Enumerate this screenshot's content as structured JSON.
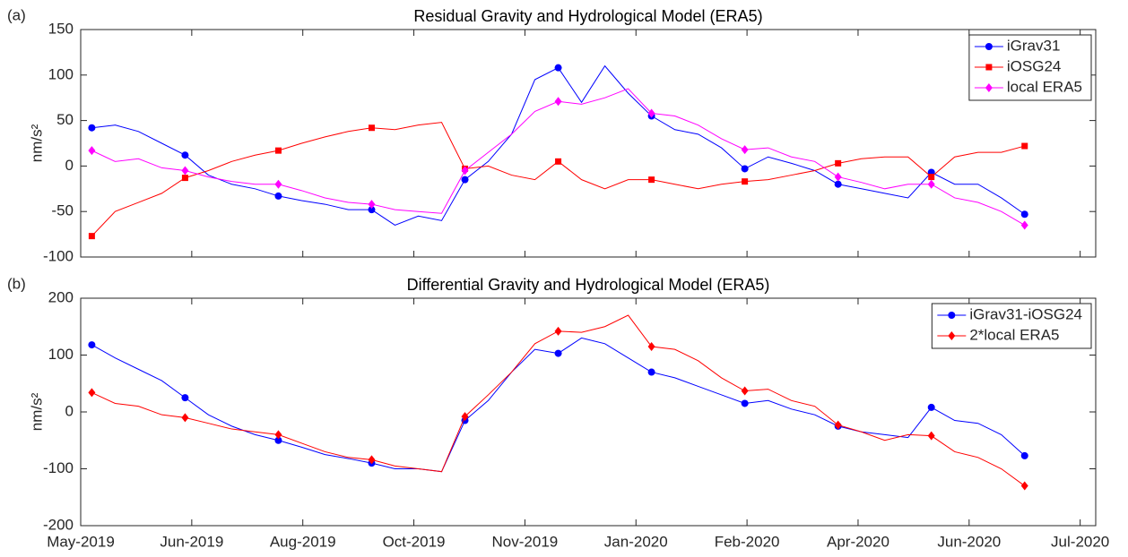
{
  "chart_data": [
    {
      "type": "line",
      "panel_label": "(a)",
      "title": "Residual Gravity and Hydrological Model (ERA5)",
      "ylabel": "nm/s²",
      "x": [
        0.1,
        0.31,
        0.52,
        0.73,
        0.94,
        1.15,
        1.36,
        1.57,
        1.78,
        1.99,
        2.2,
        2.41,
        2.62,
        2.83,
        3.04,
        3.25,
        3.46,
        3.67,
        3.88,
        4.09,
        4.3,
        4.51,
        4.72,
        4.93,
        5.14,
        5.35,
        5.56,
        5.77,
        5.98,
        6.19,
        6.4,
        6.61,
        6.82,
        7.03,
        7.24,
        7.45,
        7.66,
        7.87,
        8.08,
        8.29,
        8.5
      ],
      "xlim": [
        0,
        9.14
      ],
      "xticks": [
        0,
        1,
        2,
        3,
        4,
        5,
        6,
        7,
        8,
        9
      ],
      "show_xtick_labels": false,
      "ylim": [
        -100,
        150
      ],
      "yticks": [
        -100,
        -50,
        0,
        50,
        100,
        150
      ],
      "legend": "northeast",
      "markevery": 4,
      "series": [
        {
          "name": "iGrav31",
          "color": "#0000ff",
          "marker": "o",
          "values": [
            42,
            45,
            38,
            25,
            12,
            -10,
            -20,
            -25,
            -33,
            -38,
            -42,
            -48,
            -48,
            -65,
            -55,
            -60,
            -15,
            5,
            35,
            95,
            108,
            70,
            110,
            80,
            55,
            40,
            35,
            20,
            -3,
            10,
            3,
            -5,
            -20,
            -25,
            -30,
            -35,
            -7,
            -20,
            -20,
            -35,
            -53
          ]
        },
        {
          "name": "iOSG24",
          "color": "#ff0000",
          "marker": "s",
          "values": [
            -77,
            -50,
            -40,
            -30,
            -13,
            -5,
            5,
            12,
            17,
            25,
            32,
            38,
            42,
            40,
            45,
            48,
            -3,
            0,
            -10,
            -15,
            5,
            -15,
            -25,
            -15,
            -15,
            -20,
            -25,
            -20,
            -17,
            -15,
            -10,
            -5,
            3,
            8,
            10,
            10,
            -12,
            10,
            15,
            15,
            22
          ]
        },
        {
          "name": "local ERA5",
          "color": "#ff00ff",
          "marker": "d",
          "values": [
            17,
            5,
            8,
            -2,
            -5,
            -12,
            -17,
            -20,
            -20,
            -27,
            -35,
            -40,
            -42,
            -48,
            -50,
            -52,
            -5,
            15,
            35,
            60,
            71,
            68,
            75,
            85,
            58,
            55,
            45,
            30,
            18,
            20,
            10,
            5,
            -12,
            -18,
            -25,
            -20,
            -20,
            -35,
            -40,
            -50,
            -65
          ]
        }
      ]
    },
    {
      "type": "line",
      "panel_label": "(b)",
      "title": "Differential Gravity and Hydrological Model (ERA5)",
      "ylabel": "nm/s²",
      "x": [
        0.1,
        0.31,
        0.52,
        0.73,
        0.94,
        1.15,
        1.36,
        1.57,
        1.78,
        1.99,
        2.2,
        2.41,
        2.62,
        2.83,
        3.04,
        3.25,
        3.46,
        3.67,
        3.88,
        4.09,
        4.3,
        4.51,
        4.72,
        4.93,
        5.14,
        5.35,
        5.56,
        5.77,
        5.98,
        6.19,
        6.4,
        6.61,
        6.82,
        7.03,
        7.24,
        7.45,
        7.66,
        7.87,
        8.08,
        8.29,
        8.5
      ],
      "xlim": [
        0,
        9.14
      ],
      "xticks": [
        {
          "value": 0,
          "label": "May-2019"
        },
        {
          "value": 1,
          "label": "Jun-2019"
        },
        {
          "value": 2,
          "label": "Aug-2019"
        },
        {
          "value": 3,
          "label": "Oct-2019"
        },
        {
          "value": 4,
          "label": "Nov-2019"
        },
        {
          "value": 5,
          "label": "Jan-2020"
        },
        {
          "value": 6,
          "label": "Feb-2020"
        },
        {
          "value": 7,
          "label": "Apr-2020"
        },
        {
          "value": 8,
          "label": "Jun-2020"
        },
        {
          "value": 9,
          "label": "Jul-2020"
        }
      ],
      "show_xtick_labels": true,
      "ylim": [
        -200,
        200
      ],
      "yticks": [
        -200,
        -100,
        0,
        100,
        200
      ],
      "legend": "northeast",
      "markevery": 4,
      "series": [
        {
          "name": "iGrav31-iOSG24",
          "color": "#0000ff",
          "marker": "o",
          "values": [
            118,
            95,
            75,
            55,
            25,
            -5,
            -25,
            -40,
            -50,
            -62,
            -75,
            -82,
            -90,
            -100,
            -100,
            -105,
            -15,
            20,
            70,
            110,
            103,
            130,
            120,
            95,
            70,
            60,
            45,
            30,
            15,
            20,
            5,
            -5,
            -25,
            -35,
            -40,
            -45,
            8,
            -15,
            -20,
            -40,
            -77
          ]
        },
        {
          "name": "2*local ERA5",
          "color": "#ff0000",
          "marker": "d",
          "values": [
            34,
            15,
            10,
            -5,
            -10,
            -20,
            -30,
            -35,
            -40,
            -55,
            -70,
            -80,
            -84,
            -95,
            -100,
            -105,
            -8,
            30,
            70,
            120,
            142,
            140,
            150,
            170,
            115,
            110,
            90,
            60,
            37,
            40,
            20,
            10,
            -23,
            -35,
            -50,
            -40,
            -42,
            -70,
            -80,
            -100,
            -130
          ]
        }
      ]
    }
  ]
}
